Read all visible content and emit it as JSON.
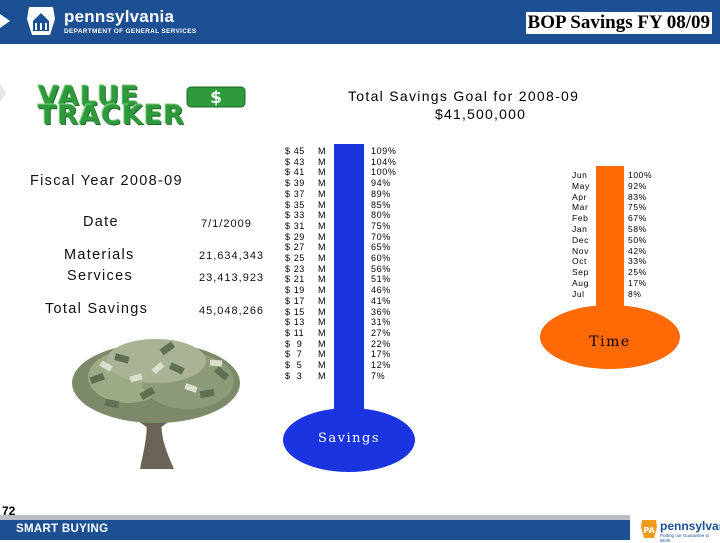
{
  "header": {
    "brand": "pennsylvania",
    "department": "DEPARTMENT OF GENERAL SERVICES",
    "title": "BOP Savings FY 08/09"
  },
  "logo": {
    "line1": "VALUE",
    "line2": "TRACKER",
    "icon": "dollar-sign-icon"
  },
  "goal": {
    "title": "Total Savings Goal for 2008-09",
    "amount": "$41,500,000"
  },
  "summary": {
    "fiscal_year": "Fiscal Year 2008-09",
    "date_label": "Date",
    "date_value": "7/1/2009",
    "materials_label": "Materials",
    "materials_value": "21,634,343",
    "services_label": "Services",
    "services_value": "23,413,923",
    "total_label": "Total Savings",
    "total_value": "45,048,266"
  },
  "savings_scale": {
    "amounts": [
      "$ 45",
      "$ 43",
      "$ 41",
      "$ 39",
      "$ 37",
      "$ 35",
      "$ 33",
      "$ 31",
      "$ 29",
      "$ 27",
      "$ 25",
      "$ 23",
      "$ 21",
      "$ 19",
      "$ 17",
      "$ 15",
      "$ 13",
      "$ 11",
      "$  9",
      "$  7",
      "$  5",
      "$  3"
    ],
    "units": [
      "M",
      "M",
      "M",
      "M",
      "M",
      "M",
      "M",
      "M",
      "M",
      "M",
      "M",
      "M",
      "M",
      "M",
      "M",
      "M",
      "M",
      "M",
      "M",
      "M",
      "M",
      "M"
    ],
    "percents": [
      "109%",
      "104%",
      "100%",
      "94%",
      "89%",
      "85%",
      "80%",
      "75%",
      "70%",
      "65%",
      "60%",
      "56%",
      "51%",
      "46%",
      "41%",
      "36%",
      "31%",
      "27%",
      "22%",
      "17%",
      "12%",
      "7%"
    ],
    "bulb_label": "Savings",
    "color": "#1a34e0"
  },
  "time_scale": {
    "months": [
      "Jun",
      "May",
      "Apr",
      "Mar",
      "Feb",
      "Jan",
      "Dec",
      "Nov",
      "Oct",
      "Sep",
      "Aug",
      "Jul"
    ],
    "percents": [
      "100%",
      "92%",
      "83%",
      "75%",
      "67%",
      "58%",
      "50%",
      "42%",
      "33%",
      "25%",
      "17%",
      "8%"
    ],
    "bulb_label": "Time",
    "color": "#ff6a06"
  },
  "footer": {
    "page_number": "72",
    "left": "SMART BUYING",
    "brand": "pennsylvania",
    "brand_sub": "Putting our Guarantee to Work"
  }
}
